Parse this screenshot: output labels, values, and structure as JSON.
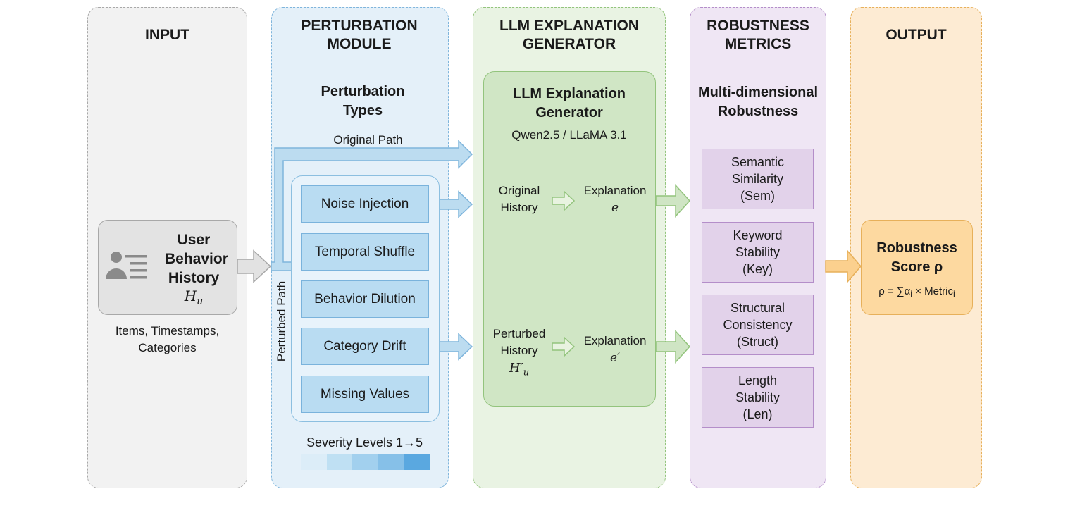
{
  "columns": {
    "input": {
      "header": "INPUT"
    },
    "perturbation": {
      "header": "PERTURBATION MODULE"
    },
    "llm": {
      "header": "LLM EXPLANATION GENERATOR"
    },
    "robustness": {
      "header": "ROBUSTNESS METRICS"
    },
    "output": {
      "header": "OUTPUT"
    }
  },
  "input": {
    "title": "User Behavior History",
    "symbol": "H",
    "symbol_sub": "u",
    "caption": "Items, Timestamps, Categories",
    "icon": "user-list-icon"
  },
  "perturbation": {
    "title": "Perturbation Types",
    "original_path": "Original Path",
    "perturbed_path": "Perturbed Path",
    "types": [
      "Noise Injection",
      "Temporal Shuffle",
      "Behavior Dilution",
      "Category Drift",
      "Missing Values"
    ],
    "severity_label": "Severity Levels 1→5",
    "severity_colors": [
      "#dcedf8",
      "#bfe0f3",
      "#a2d0ee",
      "#86c0e8",
      "#5aa8e0"
    ]
  },
  "llm": {
    "title": "LLM Explanation Generator",
    "models": "Qwen2.5 / LLaMA 3.1",
    "original_history": "Original History",
    "explanation": "Explanation",
    "e": "e",
    "perturbed_history": "Perturbed History",
    "h_prime": "H′",
    "h_prime_sub": "u",
    "e_prime": "e′"
  },
  "robustness": {
    "title": "Multi-dimensional Robustness",
    "metrics": [
      "Semantic\nSimilarity\n(Sem)",
      "Keyword\nStability\n(Key)",
      "Structural\nConsistency\n(Struct)",
      "Length\nStability\n(Len)"
    ]
  },
  "output": {
    "title": "Robustness Score ρ",
    "formula_pre": "ρ = ∑α",
    "formula_sub1": "i",
    "formula_mid": " × Metric",
    "formula_sub2": "i"
  },
  "colors": {
    "input": "#f2f2f2",
    "perturbation": "#e4f0f9",
    "llm": "#e9f3e3",
    "robustness": "#efe6f4",
    "output": "#fdebd3"
  }
}
